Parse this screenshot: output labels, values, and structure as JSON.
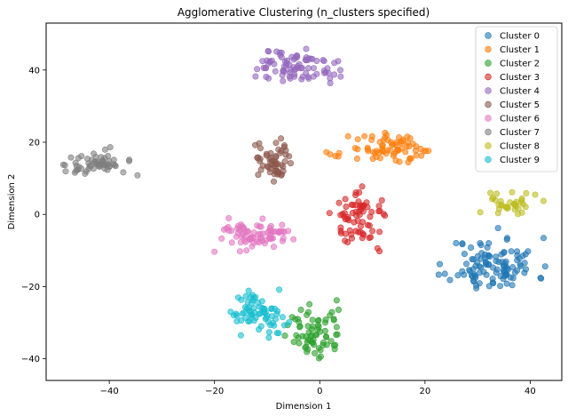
{
  "chart_data": {
    "type": "scatter",
    "title": "Agglomerative Clustering (n_clusters specified)",
    "xlabel": "Dimension 1",
    "ylabel": "Dimension 2",
    "xlim": [
      -52,
      46
    ],
    "ylim": [
      -46,
      53
    ],
    "xticks": [
      -40,
      -20,
      0,
      20,
      40
    ],
    "yticks": [
      -40,
      -20,
      0,
      20,
      40
    ],
    "grid": false,
    "legend_position": "top-right",
    "marker_alpha": 0.6,
    "series": [
      {
        "name": "Cluster 0",
        "color": "#1f77b4",
        "center": [
          33,
          -14
        ],
        "spread": [
          5.5,
          5
        ],
        "count": 110,
        "seed": 11
      },
      {
        "name": "Cluster 1",
        "color": "#ff7f0e",
        "center": [
          14,
          18
        ],
        "spread": [
          5.5,
          2.8
        ],
        "count": 75,
        "seed": 21
      },
      {
        "name": "Cluster 2",
        "color": "#2ca02c",
        "center": [
          -1,
          -33
        ],
        "spread": [
          3.5,
          5
        ],
        "count": 70,
        "seed": 31
      },
      {
        "name": "Cluster 3",
        "color": "#d62728",
        "center": [
          8,
          -1
        ],
        "spread": [
          3.5,
          4.8
        ],
        "count": 70,
        "seed": 41
      },
      {
        "name": "Cluster 4",
        "color": "#9467bd",
        "center": [
          -5,
          41
        ],
        "spread": [
          6,
          3
        ],
        "count": 85,
        "seed": 51
      },
      {
        "name": "Cluster 5",
        "color": "#8c564b",
        "center": [
          -9,
          15
        ],
        "spread": [
          2.5,
          4.3
        ],
        "count": 55,
        "seed": 61
      },
      {
        "name": "Cluster 6",
        "color": "#e377c2",
        "center": [
          -12,
          -6
        ],
        "spread": [
          5,
          2.8
        ],
        "count": 80,
        "seed": 71
      },
      {
        "name": "Cluster 7",
        "color": "#7f7f7f",
        "center": [
          -43,
          14
        ],
        "spread": [
          3.5,
          2.6
        ],
        "count": 60,
        "seed": 81
      },
      {
        "name": "Cluster 8",
        "color": "#bcbd22",
        "center": [
          36,
          3
        ],
        "spread": [
          3,
          2
        ],
        "count": 35,
        "seed": 91
      },
      {
        "name": "Cluster 9",
        "color": "#17becf",
        "center": [
          -12,
          -27
        ],
        "spread": [
          3.5,
          4
        ],
        "count": 70,
        "seed": 101
      }
    ]
  }
}
